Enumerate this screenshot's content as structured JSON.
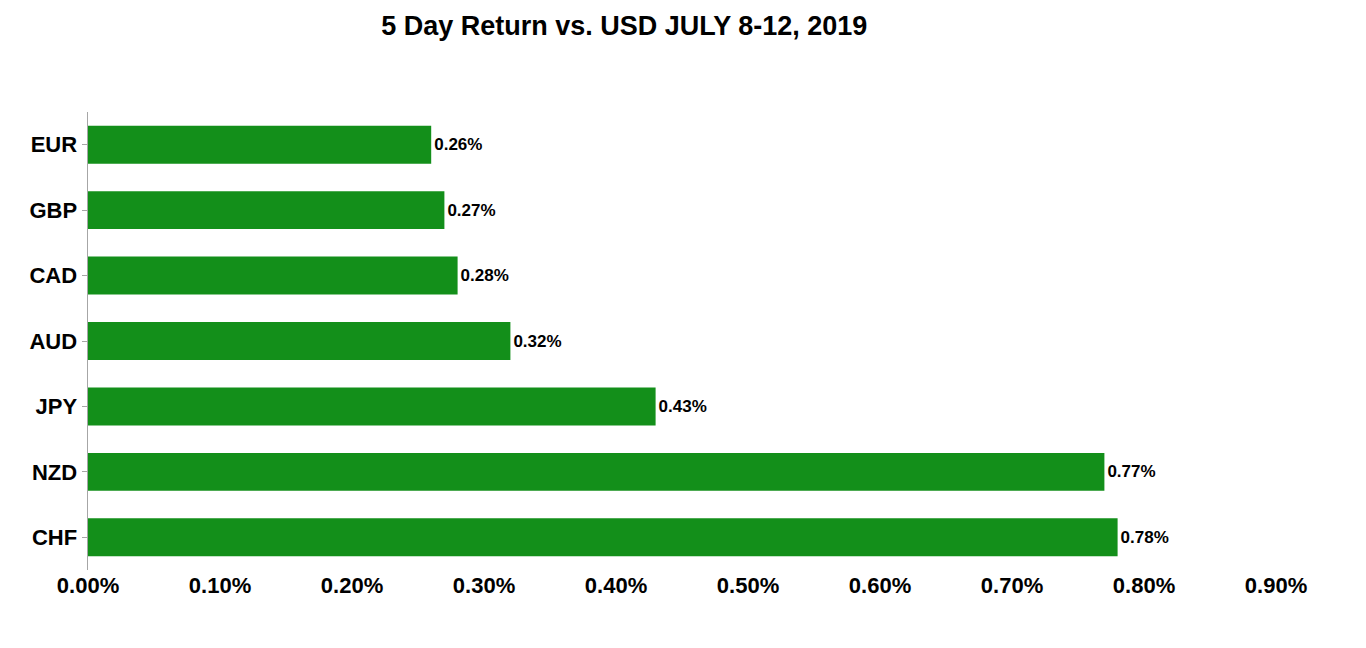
{
  "chart_data": {
    "type": "bar",
    "title": "5 Day Return vs. USD JULY 8-12, 2019",
    "orientation": "horizontal",
    "categories": [
      "EUR",
      "GBP",
      "CAD",
      "AUD",
      "JPY",
      "NZD",
      "CHF"
    ],
    "values": [
      0.26,
      0.27,
      0.28,
      0.32,
      0.43,
      0.77,
      0.78
    ],
    "value_labels": [
      "0.26%",
      "0.27%",
      "0.28%",
      "0.32%",
      "0.43%",
      "0.77%",
      "0.78%"
    ],
    "data_labels": true,
    "color": "#138f1a",
    "xlim": [
      0,
      0.9
    ],
    "xticks": [
      {
        "value": 0,
        "label": "0.00%"
      },
      {
        "value": 0.1,
        "label": "0.10%"
      },
      {
        "value": 0.2,
        "label": "0.20%"
      },
      {
        "value": 0.3,
        "label": "0.30%"
      },
      {
        "value": 0.4,
        "label": "0.40%"
      },
      {
        "value": 0.5,
        "label": "0.50%"
      },
      {
        "value": 0.6,
        "label": "0.60%"
      },
      {
        "value": 0.7,
        "label": "0.70%"
      },
      {
        "value": 0.8,
        "label": "0.80%"
      },
      {
        "value": 0.9,
        "label": "0.90%"
      }
    ],
    "grid": false
  }
}
